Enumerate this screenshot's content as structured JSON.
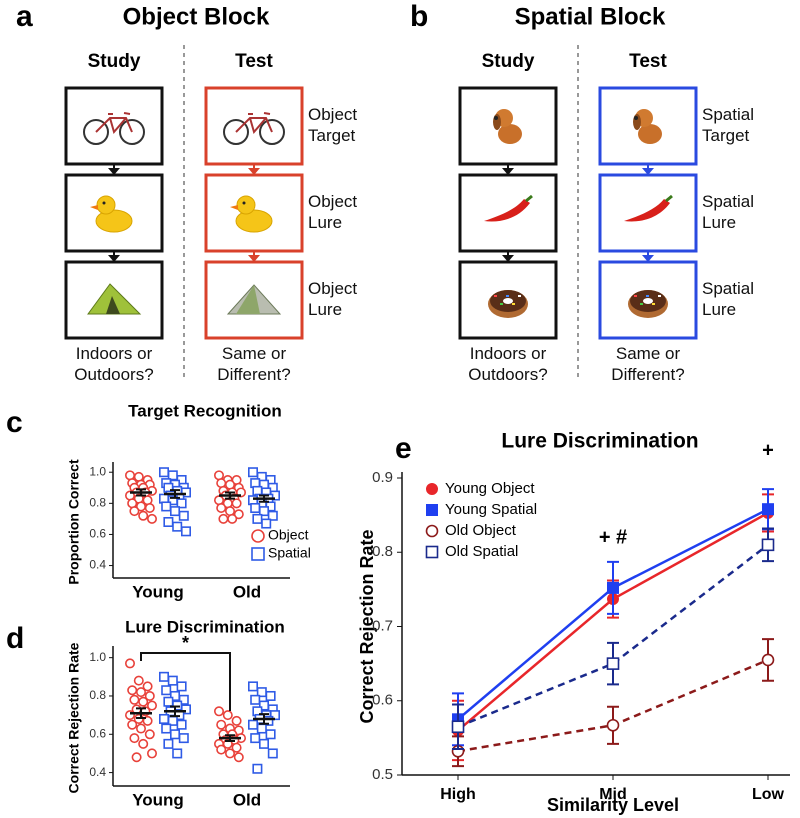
{
  "panels": {
    "a": {
      "label": "a",
      "title": "Object Block",
      "study": "Study",
      "test": "Test",
      "side_labels": [
        "Object Target",
        "Object Lure",
        "Object Lure"
      ],
      "study_question": "Indoors or Outdoors?",
      "test_question": "Same or Different?",
      "color": "#d9412b"
    },
    "b": {
      "label": "b",
      "title": "Spatial Block",
      "study": "Study",
      "test": "Test",
      "side_labels": [
        "Spatial Target",
        "Spatial Lure",
        "Spatial Lure"
      ],
      "study_question": "Indoors or Outdoors?",
      "test_question": "Same or Different?",
      "color": "#2a4ae0"
    }
  },
  "chart_data": [
    {
      "type": "dotplot",
      "panel_label": "c",
      "title": "Target Recognition",
      "y_label": "Proportion Correct",
      "categories": [
        "Young",
        "Old"
      ],
      "ylim": [
        0.32,
        1.04
      ],
      "yticks": [
        0.4,
        0.6,
        0.8,
        {
          "value": 1,
          "label": "1.0"
        }
      ],
      "legend": "lower right",
      "series": [
        {
          "name": "Object",
          "color": "#e8413a",
          "marker": "circle",
          "points": [
            [
              0.98,
              0.97,
              0.95,
              0.93,
              0.92,
              0.92,
              0.9,
              0.9,
              0.88,
              0.87,
              0.87,
              0.85,
              0.83,
              0.82,
              0.8,
              0.78,
              0.77,
              0.75,
              0.72,
              0.7
            ],
            [
              0.98,
              0.95,
              0.95,
              0.93,
              0.92,
              0.9,
              0.88,
              0.87,
              0.87,
              0.85,
              0.83,
              0.82,
              0.8,
              0.8,
              0.77,
              0.75,
              0.73,
              0.7,
              0.7
            ]
          ],
          "mean": [
            0.87,
            0.85
          ],
          "sem": [
            0.02,
            0.02
          ]
        },
        {
          "name": "Spatial",
          "color": "#2f5be6",
          "marker": "square",
          "points": [
            [
              1.0,
              0.98,
              0.95,
              0.93,
              0.92,
              0.9,
              0.9,
              0.88,
              0.87,
              0.85,
              0.83,
              0.83,
              0.82,
              0.8,
              0.78,
              0.75,
              0.72,
              0.68,
              0.65,
              0.62
            ],
            [
              1.0,
              0.97,
              0.95,
              0.93,
              0.92,
              0.9,
              0.88,
              0.87,
              0.85,
              0.83,
              0.83,
              0.82,
              0.8,
              0.78,
              0.77,
              0.75,
              0.72,
              0.7,
              0.67
            ]
          ],
          "mean": [
            0.86,
            0.83
          ],
          "sem": [
            0.025,
            0.02
          ]
        }
      ]
    },
    {
      "type": "dotplot",
      "panel_label": "d",
      "title": "Lure Discrimination",
      "y_label": "Correct Rejection Rate",
      "categories": [
        "Young",
        "Old"
      ],
      "ylim": [
        0.33,
        1.04
      ],
      "yticks": [
        0.4,
        0.6,
        0.8,
        {
          "value": 1,
          "label": "1.0"
        }
      ],
      "annotation": "*",
      "series": [
        {
          "color": "#e8413a",
          "marker": "circle",
          "points": [
            [
              0.97,
              0.88,
              0.85,
              0.83,
              0.82,
              0.8,
              0.78,
              0.77,
              0.75,
              0.73,
              0.72,
              0.7,
              0.68,
              0.67,
              0.65,
              0.63,
              0.6,
              0.58,
              0.55,
              0.5,
              0.48
            ],
            [
              0.72,
              0.7,
              0.67,
              0.65,
              0.63,
              0.62,
              0.6,
              0.6,
              0.58,
              0.57,
              0.57,
              0.55,
              0.55,
              0.53,
              0.52,
              0.5,
              0.48
            ]
          ],
          "mean": [
            0.71,
            0.58
          ],
          "sem": [
            0.025,
            0.015
          ]
        },
        {
          "color": "#2f5be6",
          "marker": "square",
          "points": [
            [
              0.9,
              0.88,
              0.85,
              0.83,
              0.8,
              0.78,
              0.77,
              0.75,
              0.73,
              0.72,
              0.7,
              0.68,
              0.67,
              0.65,
              0.63,
              0.6,
              0.58,
              0.55,
              0.5
            ],
            [
              0.85,
              0.82,
              0.8,
              0.78,
              0.75,
              0.73,
              0.72,
              0.7,
              0.7,
              0.68,
              0.67,
              0.65,
              0.63,
              0.6,
              0.58,
              0.55,
              0.5,
              0.42
            ]
          ],
          "mean": [
            0.72,
            0.68
          ],
          "sem": [
            0.025,
            0.025
          ]
        }
      ]
    },
    {
      "type": "line",
      "panel_label": "e",
      "title": "Lure Discrimination",
      "x_label": "Similarity Level",
      "y_label": "Correct Rejection Rate",
      "categories": [
        "High",
        "Mid",
        "Low"
      ],
      "ylim": [
        0.5,
        0.9
      ],
      "yticks": [
        0.5,
        0.6,
        0.7,
        0.8,
        0.9
      ],
      "legend": "upper left",
      "annotations": [
        null,
        "+ #",
        "+"
      ],
      "series": [
        {
          "name": "Young Object",
          "color": "#e8262a",
          "marker": "circle",
          "filled": true,
          "dashed": false,
          "values": [
            0.56,
            0.737,
            0.853
          ],
          "errors": [
            0.04,
            0.025,
            0.025
          ]
        },
        {
          "name": "Young Spatial",
          "color": "#1f3ff0",
          "marker": "square",
          "filled": true,
          "dashed": false,
          "values": [
            0.575,
            0.752,
            0.858
          ],
          "errors": [
            0.035,
            0.035,
            0.027
          ]
        },
        {
          "name": "Old Object",
          "color": "#8c1a1a",
          "marker": "circle",
          "filled": false,
          "dashed": true,
          "values": [
            0.532,
            0.567,
            0.655
          ],
          "errors": [
            0.02,
            0.025,
            0.028
          ]
        },
        {
          "name": "Old Spatial",
          "color": "#1a2a8c",
          "marker": "square",
          "filled": false,
          "dashed": true,
          "values": [
            0.565,
            0.65,
            0.81
          ],
          "errors": [
            0.03,
            0.028,
            0.022
          ]
        }
      ]
    }
  ]
}
